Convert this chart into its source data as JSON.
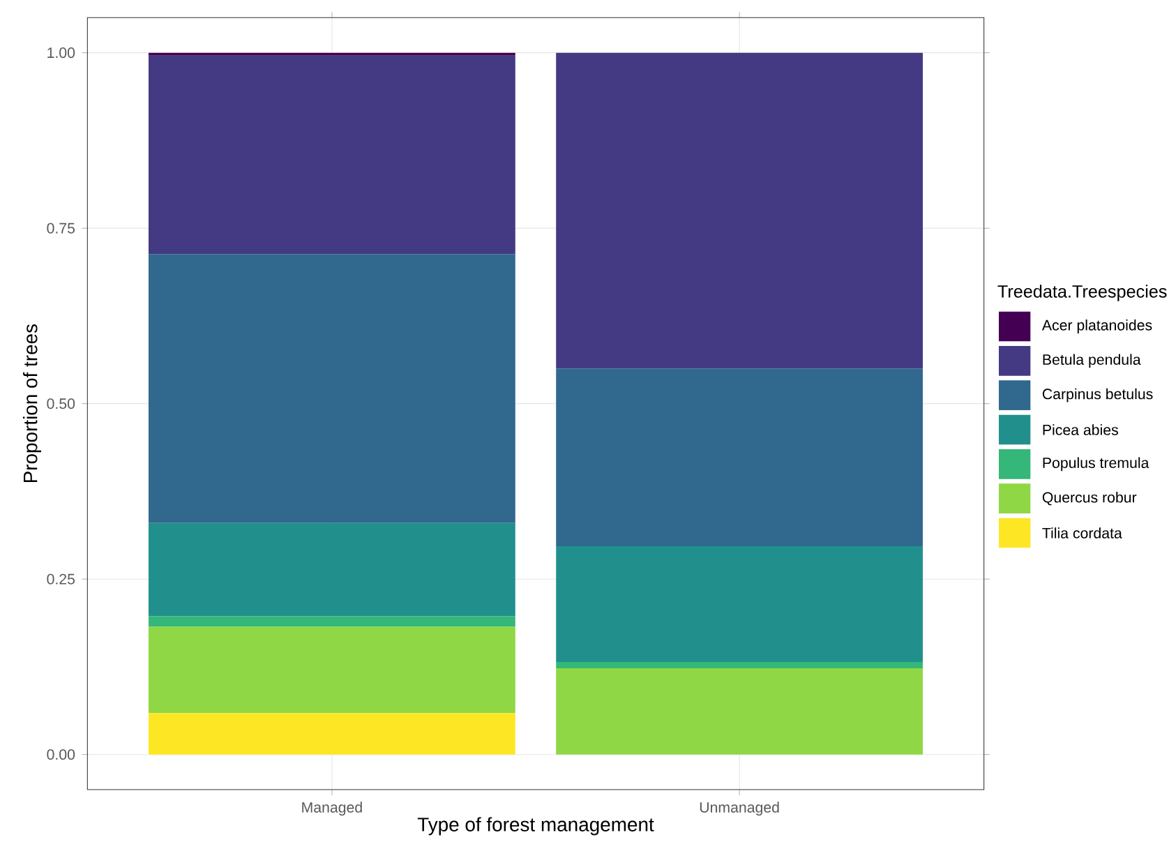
{
  "chart_data": {
    "type": "bar",
    "stacked": true,
    "xlabel": "Type of forest management",
    "ylabel": "Proportion of trees",
    "legend_title": "Treedata.Treespecies",
    "categories": [
      "Managed",
      "Unmanaged"
    ],
    "ylim": [
      -0.05,
      1.05
    ],
    "yticks": [
      {
        "value": 0,
        "label": "0.00"
      },
      {
        "value": 0.25,
        "label": "0.25"
      },
      {
        "value": 0.5,
        "label": "0.50"
      },
      {
        "value": 0.75,
        "label": "0.75"
      },
      {
        "value": 1,
        "label": "1.00"
      }
    ],
    "grid": true,
    "legend": "right",
    "series": [
      {
        "name": "Tilia cordata",
        "color": "#fde725",
        "values": [
          0.059,
          0
        ]
      },
      {
        "name": "Quercus robur",
        "color": "#8fd744",
        "values": [
          0.123,
          0.123
        ]
      },
      {
        "name": "Populus tremula",
        "color": "#35b779",
        "values": [
          0.015,
          0.009
        ]
      },
      {
        "name": "Picea abies",
        "color": "#21908d",
        "values": [
          0.133,
          0.165
        ]
      },
      {
        "name": "Carpinus betulus",
        "color": "#31688e",
        "values": [
          0.383,
          0.253
        ]
      },
      {
        "name": "Betula pendula",
        "color": "#443983",
        "values": [
          0.283,
          0.45
        ]
      },
      {
        "name": "Acer platanoides",
        "color": "#440154",
        "values": [
          0.004,
          0
        ]
      }
    ]
  }
}
